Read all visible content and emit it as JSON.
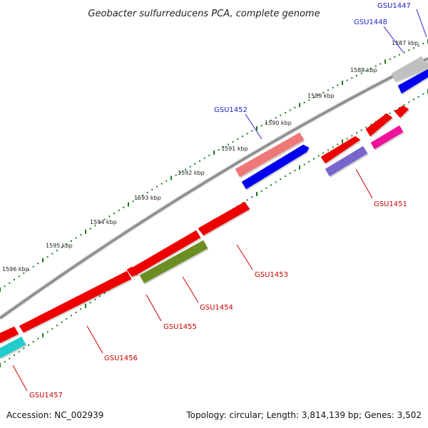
{
  "title": "Geobacter sulfurreducens PCA, complete genome",
  "footer": {
    "accession": "Accession: NC_002939",
    "summary": "Topology: circular; Length: 3,814,139 bp; Genes: 3,502"
  },
  "colors": {
    "backbone": "#8a8a8a",
    "tick": "#1f7a1f",
    "label_forward": "#2222cc",
    "label_reverse": "#cc0000"
  },
  "scale_labels": [
    "1587 kbp",
    "1588 kbp",
    "1589 kbp",
    "1590 kbp",
    "1591 kbp",
    "1592 kbp",
    "1593 kbp",
    "1594 kbp",
    "1595 kbp",
    "1596 kbp"
  ],
  "gene_labels": [
    {
      "name": "GSU1447",
      "strand": "forward"
    },
    {
      "name": "GSU1448",
      "strand": "forward"
    },
    {
      "name": "GSU1452",
      "strand": "forward"
    },
    {
      "name": "GSU1451",
      "strand": "reverse"
    },
    {
      "name": "GSU1453",
      "strand": "reverse"
    },
    {
      "name": "GSU1454",
      "strand": "reverse"
    },
    {
      "name": "GSU1455",
      "strand": "reverse"
    },
    {
      "name": "GSU1456",
      "strand": "reverse"
    },
    {
      "name": "GSU1457",
      "strand": "reverse"
    }
  ],
  "genes": [
    {
      "color": "#c0c0c0"
    },
    {
      "color": "#0000ee"
    },
    {
      "color": "#ee0000"
    },
    {
      "color": "#ee0000"
    },
    {
      "color": "#ee1199"
    },
    {
      "color": "#ee0000"
    },
    {
      "color": "#7766cc"
    },
    {
      "color": "#ee7777"
    },
    {
      "color": "#0000ee"
    },
    {
      "color": "#ee0000"
    },
    {
      "color": "#ee0000"
    },
    {
      "color": "#6b8e23"
    },
    {
      "color": "#ee0000"
    },
    {
      "color": "#ee0000"
    },
    {
      "color": "#ee0000"
    },
    {
      "color": "#22cccc"
    }
  ]
}
